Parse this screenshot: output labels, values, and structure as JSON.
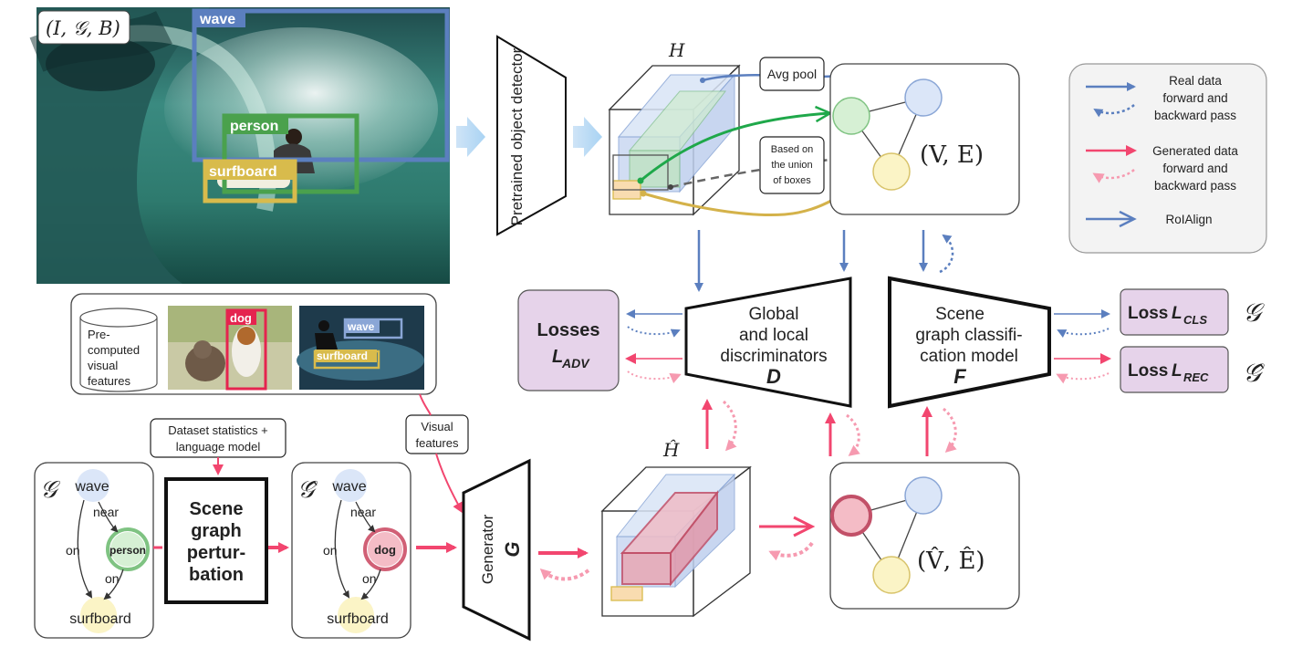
{
  "photo": {
    "label": "(I, 𝒢, B)",
    "boxes": {
      "wave": "wave",
      "person": "person",
      "surfboard": "surfboard"
    }
  },
  "detector": {
    "label": "Pretrained object detector"
  },
  "features": {
    "H": "H",
    "H_hat": "Ĥ"
  },
  "avg_pool": "Avg pool",
  "union_note": [
    "Based on",
    "the union",
    "of boxes"
  ],
  "graph_real": "(V, E)",
  "graph_gen": "(V̂, Ê)",
  "legend": {
    "real": [
      "Real data",
      "forward and",
      "backward pass"
    ],
    "generated": [
      "Generated data",
      "forward and",
      "backward pass"
    ],
    "roialign": "RoIAlign",
    "colors": {
      "real": "#5b7fbf",
      "generated": "#f2466f",
      "box_bg": "#f3f3f3"
    }
  },
  "losses_adv": {
    "title": "Losses",
    "sub": "L",
    "subscript": "ADV"
  },
  "discriminator": {
    "lines": [
      "Global",
      "and local",
      "discriminators"
    ],
    "letter": "D"
  },
  "classifier": {
    "lines": [
      "Scene",
      "graph classifi-",
      "cation model"
    ],
    "letter": "F"
  },
  "loss_cls": {
    "prefix": "Loss ",
    "L": "L",
    "subscript": "CLS",
    "symbol": "𝒢"
  },
  "loss_rec": {
    "prefix": "Loss ",
    "L": "L",
    "subscript": "REC",
    "symbol": "𝒢̂"
  },
  "precomputed": {
    "lines": [
      "Pre-",
      "computed",
      "visual",
      "features"
    ],
    "dog_label": "dog",
    "wave_label": "wave",
    "surfboard_label": "surfboard"
  },
  "dataset_stats": [
    "Dataset statistics +",
    "language model"
  ],
  "visual_features": [
    "Visual",
    "features"
  ],
  "graph_left": {
    "symbol": "𝒢",
    "nodes": {
      "wave": "wave",
      "person": "person",
      "surfboard": "surfboard"
    },
    "edges": {
      "near": "near",
      "on1": "on",
      "on2": "on"
    }
  },
  "perturbation": {
    "lines": [
      "Scene",
      "graph",
      "pertur-",
      "bation"
    ]
  },
  "graph_pert": {
    "symbol": "𝒢̂",
    "nodes": {
      "wave": "wave",
      "dog": "dog",
      "surfboard": "surfboard"
    },
    "edges": {
      "near": "near",
      "on1": "on",
      "on2": "on"
    }
  },
  "generator": {
    "label": "Generator",
    "letter": "G"
  }
}
